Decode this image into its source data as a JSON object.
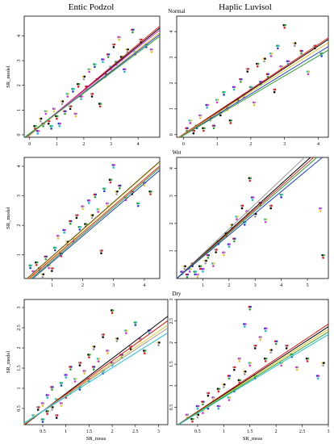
{
  "figure": {
    "columns": [
      "Entic Podzol",
      "Haplic Luvisol"
    ],
    "conditions": [
      "Normal",
      "Wet",
      "Dry"
    ],
    "ylabel": "SR_model",
    "xlabel": "SR_meas"
  },
  "series_colors": [
    "#000000",
    "#e41a1c",
    "#2ca02c",
    "#1f3fd6",
    "#17becf",
    "#d62fd6",
    "#e6c229",
    "#999999"
  ],
  "chart_data": [
    {
      "type": "scatter",
      "title": "Entic Podzol",
      "condition": "Normal",
      "xlabel": "",
      "ylabel": "SR_model",
      "xlim": [
        -0.2,
        4.8
      ],
      "ylim": [
        -0.1,
        4.8
      ],
      "xticks": [
        0,
        1,
        2,
        3,
        4
      ],
      "yticks": [
        0,
        1,
        2,
        3,
        4
      ],
      "points": [
        [
          0.2,
          0.3
        ],
        [
          0.3,
          0.1
        ],
        [
          0.4,
          0.6
        ],
        [
          0.5,
          0.4
        ],
        [
          0.6,
          0.9
        ],
        [
          0.7,
          0.5
        ],
        [
          0.8,
          0.3
        ],
        [
          0.9,
          1.0
        ],
        [
          1.0,
          0.7
        ],
        [
          1.1,
          0.4
        ],
        [
          1.2,
          1.3
        ],
        [
          1.3,
          0.9
        ],
        [
          1.4,
          1.6
        ],
        [
          1.5,
          1.1
        ],
        [
          1.6,
          1.8
        ],
        [
          1.7,
          0.8
        ],
        [
          1.8,
          2.0
        ],
        [
          1.9,
          1.5
        ],
        [
          2.0,
          2.3
        ],
        [
          2.1,
          1.9
        ],
        [
          2.2,
          2.6
        ],
        [
          2.3,
          1.6
        ],
        [
          2.4,
          2.8
        ],
        [
          2.5,
          2.2
        ],
        [
          2.6,
          1.2
        ],
        [
          2.7,
          3.0
        ],
        [
          2.8,
          2.4
        ],
        [
          2.9,
          3.2
        ],
        [
          3.0,
          2.7
        ],
        [
          3.1,
          3.6
        ],
        [
          3.2,
          2.9
        ],
        [
          3.3,
          3.9
        ],
        [
          3.4,
          3.1
        ],
        [
          3.5,
          2.6
        ],
        [
          3.6,
          3.4
        ],
        [
          3.8,
          4.2
        ],
        [
          3.9,
          3.3
        ],
        [
          4.1,
          3.8
        ],
        [
          4.3,
          3.6
        ],
        [
          4.5,
          3.4
        ]
      ],
      "fit_lines": [
        {
          "color": "#000000",
          "intercept": 0.0,
          "slope": 0.9
        },
        {
          "color": "#e41a1c",
          "intercept": -0.02,
          "slope": 0.92
        },
        {
          "color": "#d62fd6",
          "intercept": 0.02,
          "slope": 0.88
        },
        {
          "color": "#e6c229",
          "intercept": 0.0,
          "slope": 0.86
        },
        {
          "color": "#1f3fd6",
          "intercept": 0.03,
          "slope": 0.84
        },
        {
          "color": "#2ca02c",
          "intercept": 0.05,
          "slope": 0.82
        }
      ]
    },
    {
      "type": "scatter",
      "title": "Haplic Luvisol",
      "condition": "Normal",
      "xlabel": "",
      "ylabel": "",
      "xlim": [
        -0.2,
        4.3
      ],
      "ylim": [
        -0.1,
        4.6
      ],
      "xticks": [
        0,
        1,
        2,
        3,
        4
      ],
      "yticks": [
        0,
        1,
        2,
        3,
        4
      ],
      "points": [
        [
          0.1,
          0.2
        ],
        [
          0.2,
          0.5
        ],
        [
          0.3,
          0.1
        ],
        [
          0.4,
          0.3
        ],
        [
          0.5,
          0.7
        ],
        [
          0.6,
          0.2
        ],
        [
          0.7,
          1.1
        ],
        [
          0.8,
          0.6
        ],
        [
          0.9,
          0.3
        ],
        [
          1.0,
          1.3
        ],
        [
          1.1,
          0.8
        ],
        [
          1.2,
          1.6
        ],
        [
          1.3,
          1.0
        ],
        [
          1.4,
          0.5
        ],
        [
          1.5,
          1.8
        ],
        [
          1.6,
          1.3
        ],
        [
          1.7,
          2.1
        ],
        [
          1.8,
          1.5
        ],
        [
          1.9,
          2.5
        ],
        [
          2.0,
          1.8
        ],
        [
          2.1,
          1.2
        ],
        [
          2.2,
          2.7
        ],
        [
          2.3,
          2.0
        ],
        [
          2.4,
          2.9
        ],
        [
          2.5,
          2.3
        ],
        [
          2.6,
          3.1
        ],
        [
          2.7,
          1.7
        ],
        [
          2.8,
          3.4
        ],
        [
          2.9,
          2.6
        ],
        [
          3.0,
          4.2
        ],
        [
          3.1,
          2.8
        ],
        [
          3.3,
          3.5
        ],
        [
          3.5,
          3.2
        ],
        [
          3.7,
          2.4
        ],
        [
          3.9,
          3.4
        ],
        [
          4.1,
          3.1
        ]
      ],
      "fit_lines": [
        {
          "color": "#000000",
          "intercept": 0.0,
          "slope": 0.86
        },
        {
          "color": "#e41a1c",
          "intercept": 0.02,
          "slope": 0.87
        },
        {
          "color": "#e6c229",
          "intercept": 0.0,
          "slope": 0.83
        },
        {
          "color": "#1f3fd6",
          "intercept": -0.02,
          "slope": 0.8
        },
        {
          "color": "#2ca02c",
          "intercept": -0.03,
          "slope": 0.77
        }
      ]
    },
    {
      "type": "scatter",
      "title": "",
      "condition": "Wet",
      "xlabel": "",
      "ylabel": "SR_model",
      "xlim": [
        0.1,
        4.5
      ],
      "ylim": [
        0.2,
        4.3
      ],
      "xticks": [
        1,
        2,
        3,
        4
      ],
      "yticks": [
        1,
        2,
        3,
        4
      ],
      "points": [
        [
          0.3,
          0.6
        ],
        [
          0.4,
          0.4
        ],
        [
          0.5,
          0.7
        ],
        [
          0.6,
          0.5
        ],
        [
          0.7,
          0.3
        ],
        [
          0.8,
          0.9
        ],
        [
          0.9,
          0.6
        ],
        [
          1.0,
          0.5
        ],
        [
          1.1,
          1.2
        ],
        [
          1.2,
          1.6
        ],
        [
          1.3,
          1.0
        ],
        [
          1.4,
          1.8
        ],
        [
          1.5,
          1.4
        ],
        [
          1.6,
          2.1
        ],
        [
          1.7,
          1.5
        ],
        [
          1.8,
          2.3
        ],
        [
          1.9,
          1.9
        ],
        [
          2.0,
          2.6
        ],
        [
          2.1,
          2.0
        ],
        [
          2.2,
          2.8
        ],
        [
          2.3,
          2.3
        ],
        [
          2.4,
          3.0
        ],
        [
          2.5,
          2.5
        ],
        [
          2.6,
          1.1
        ],
        [
          2.7,
          3.2
        ],
        [
          2.8,
          2.7
        ],
        [
          2.9,
          3.5
        ],
        [
          3.0,
          4.0
        ],
        [
          3.1,
          3.1
        ],
        [
          3.2,
          3.3
        ],
        [
          3.4,
          2.9
        ],
        [
          3.6,
          3.1
        ],
        [
          3.8,
          2.7
        ],
        [
          4.0,
          3.4
        ],
        [
          4.2,
          3.1
        ]
      ],
      "fit_lines": [
        {
          "color": "#000000",
          "intercept": 0.02,
          "slope": 0.92
        },
        {
          "color": "#e6c229",
          "intercept": 0.0,
          "slope": 0.92
        },
        {
          "color": "#e41a1c",
          "intercept": -0.04,
          "slope": 0.9
        },
        {
          "color": "#2ca02c",
          "intercept": -0.1,
          "slope": 0.9
        },
        {
          "color": "#1f3fd6",
          "intercept": -0.14,
          "slope": 0.89
        }
      ]
    },
    {
      "type": "scatter",
      "title": "",
      "condition": "Wet",
      "xlabel": "",
      "ylabel": "",
      "xlim": [
        0.0,
        5.8
      ],
      "ylim": [
        0.0,
        4.4
      ],
      "xticks": [
        1,
        2,
        3,
        4,
        5
      ],
      "yticks": [
        1,
        2,
        3,
        4
      ],
      "points": [
        [
          0.2,
          0.2
        ],
        [
          0.3,
          0.4
        ],
        [
          0.4,
          0.1
        ],
        [
          0.5,
          0.3
        ],
        [
          0.6,
          0.5
        ],
        [
          0.7,
          0.2
        ],
        [
          0.8,
          0.1
        ],
        [
          0.9,
          0.4
        ],
        [
          1.0,
          0.3
        ],
        [
          1.1,
          0.6
        ],
        [
          1.2,
          0.8
        ],
        [
          1.4,
          0.5
        ],
        [
          1.5,
          1.0
        ],
        [
          1.6,
          1.3
        ],
        [
          1.8,
          0.9
        ],
        [
          1.9,
          1.6
        ],
        [
          2.0,
          1.2
        ],
        [
          2.1,
          1.9
        ],
        [
          2.2,
          1.4
        ],
        [
          2.3,
          2.2
        ],
        [
          2.5,
          2.6
        ],
        [
          2.6,
          2.0
        ],
        [
          2.7,
          2.4
        ],
        [
          2.8,
          3.6
        ],
        [
          2.9,
          2.9
        ],
        [
          3.0,
          2.3
        ],
        [
          3.2,
          2.7
        ],
        [
          3.4,
          2.1
        ],
        [
          3.6,
          2.6
        ],
        [
          4.0,
          3.0
        ],
        [
          5.5,
          2.5
        ],
        [
          5.6,
          0.8
        ]
      ],
      "fit_lines": [
        {
          "color": "#999999",
          "intercept": 0.0,
          "slope": 0.9
        },
        {
          "color": "#000000",
          "intercept": 0.0,
          "slope": 0.86
        },
        {
          "color": "#e41a1c",
          "intercept": 0.0,
          "slope": 0.84
        },
        {
          "color": "#2ca02c",
          "intercept": 0.0,
          "slope": 0.82
        },
        {
          "color": "#1f3fd6",
          "intercept": 0.0,
          "slope": 0.79
        }
      ]
    },
    {
      "type": "scatter",
      "title": "",
      "condition": "Dry",
      "xlabel": "SR_meas",
      "ylabel": "SR_model",
      "xlim": [
        0.1,
        3.2
      ],
      "ylim": [
        0.1,
        3.2
      ],
      "xticks": [
        0.5,
        1.0,
        1.5,
        2.0,
        2.5,
        3.0
      ],
      "yticks": [
        0.5,
        1.0,
        1.5,
        2.0,
        2.5,
        3.0
      ],
      "points": [
        [
          0.3,
          0.3
        ],
        [
          0.4,
          0.5
        ],
        [
          0.5,
          0.2
        ],
        [
          0.5,
          0.6
        ],
        [
          0.6,
          0.4
        ],
        [
          0.6,
          0.8
        ],
        [
          0.7,
          0.5
        ],
        [
          0.7,
          1.0
        ],
        [
          0.8,
          0.7
        ],
        [
          0.8,
          0.3
        ],
        [
          0.9,
          1.1
        ],
        [
          0.9,
          0.6
        ],
        [
          1.0,
          0.8
        ],
        [
          1.0,
          1.3
        ],
        [
          1.1,
          0.9
        ],
        [
          1.1,
          1.5
        ],
        [
          1.2,
          1.2
        ],
        [
          1.3,
          1.6
        ],
        [
          1.3,
          1.0
        ],
        [
          1.4,
          1.4
        ],
        [
          1.5,
          1.8
        ],
        [
          1.5,
          1.2
        ],
        [
          1.6,
          2.0
        ],
        [
          1.6,
          1.5
        ],
        [
          1.7,
          1.7
        ],
        [
          1.8,
          2.3
        ],
        [
          1.8,
          1.4
        ],
        [
          1.9,
          1.9
        ],
        [
          2.0,
          2.9
        ],
        [
          2.0,
          1.6
        ],
        [
          2.1,
          2.2
        ],
        [
          2.2,
          1.8
        ],
        [
          2.3,
          2.4
        ],
        [
          2.4,
          2.0
        ],
        [
          2.5,
          2.6
        ],
        [
          2.6,
          2.2
        ],
        [
          2.7,
          1.9
        ],
        [
          2.8,
          2.4
        ],
        [
          3.0,
          2.1
        ]
      ],
      "fit_lines": [
        {
          "color": "#000000",
          "intercept": 0.0,
          "slope": 0.87
        },
        {
          "color": "#e41a1c",
          "intercept": 0.02,
          "slope": 0.83
        },
        {
          "color": "#e6c229",
          "intercept": 0.04,
          "slope": 0.79
        },
        {
          "color": "#999999",
          "intercept": 0.06,
          "slope": 0.76
        },
        {
          "color": "#17becf",
          "intercept": 0.07,
          "slope": 0.72
        }
      ]
    },
    {
      "type": "scatter",
      "title": "",
      "condition": "Dry",
      "xlabel": "SR_meas",
      "ylabel": "",
      "xlim": [
        0.1,
        3.0
      ],
      "ylim": [
        0.1,
        3.0
      ],
      "xticks": [
        0.5,
        1.0,
        1.5,
        2.0,
        2.5,
        3.0
      ],
      "yticks": [
        0.5,
        1.0,
        1.5,
        2.0,
        2.5,
        3.0
      ],
      "points": [
        [
          0.3,
          0.3
        ],
        [
          0.4,
          0.2
        ],
        [
          0.5,
          0.5
        ],
        [
          0.5,
          0.3
        ],
        [
          0.6,
          0.6
        ],
        [
          0.6,
          0.4
        ],
        [
          0.7,
          0.8
        ],
        [
          0.7,
          0.5
        ],
        [
          0.8,
          0.7
        ],
        [
          0.9,
          0.9
        ],
        [
          0.9,
          0.5
        ],
        [
          1.0,
          1.0
        ],
        [
          1.1,
          1.2
        ],
        [
          1.1,
          0.7
        ],
        [
          1.2,
          1.4
        ],
        [
          1.2,
          0.9
        ],
        [
          1.3,
          1.6
        ],
        [
          1.3,
          1.1
        ],
        [
          1.4,
          2.4
        ],
        [
          1.4,
          1.3
        ],
        [
          1.5,
          2.8
        ],
        [
          1.5,
          1.5
        ],
        [
          1.6,
          1.9
        ],
        [
          1.6,
          1.2
        ],
        [
          1.7,
          2.1
        ],
        [
          1.8,
          1.6
        ],
        [
          1.8,
          2.3
        ],
        [
          1.9,
          1.8
        ],
        [
          2.0,
          2.0
        ],
        [
          2.1,
          1.5
        ],
        [
          2.2,
          1.9
        ],
        [
          2.3,
          1.7
        ],
        [
          2.4,
          1.4
        ],
        [
          2.6,
          1.6
        ],
        [
          2.8,
          1.2
        ],
        [
          2.9,
          1.5
        ]
      ],
      "fit_lines": [
        {
          "color": "#e41a1c",
          "intercept": 0.0,
          "slope": 0.81
        },
        {
          "color": "#000000",
          "intercept": 0.0,
          "slope": 0.79
        },
        {
          "color": "#e6c229",
          "intercept": 0.0,
          "slope": 0.77
        },
        {
          "color": "#2ca02c",
          "intercept": 0.0,
          "slope": 0.75
        },
        {
          "color": "#17becf",
          "intercept": 0.0,
          "slope": 0.73
        }
      ]
    }
  ]
}
